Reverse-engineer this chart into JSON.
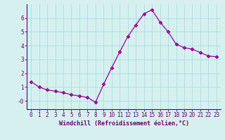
{
  "x": [
    0,
    1,
    2,
    3,
    4,
    5,
    6,
    7,
    8,
    9,
    10,
    11,
    12,
    13,
    14,
    15,
    16,
    17,
    18,
    19,
    20,
    21,
    22,
    23
  ],
  "y": [
    1.4,
    1.0,
    0.8,
    0.7,
    0.6,
    0.45,
    0.35,
    0.25,
    -0.1,
    1.2,
    2.4,
    3.55,
    4.65,
    5.5,
    6.3,
    6.6,
    5.7,
    5.0,
    4.1,
    3.85,
    3.75,
    3.5,
    3.25,
    3.2
  ],
  "line_color": "#990099",
  "marker": "D",
  "marker_size": 2.5,
  "bg_color": "#d6f0f0",
  "grid_color": "#aadddd",
  "axis_color": "#660066",
  "xlabel": "Windchill (Refroidissement éolien,°C)",
  "xlabel_fontsize": 6.0,
  "tick_fontsize": 5.5,
  "ylim": [
    -0.6,
    7.0
  ],
  "xlim": [
    -0.5,
    23.5
  ],
  "yticks": [
    0,
    1,
    2,
    3,
    4,
    5,
    6
  ],
  "ytick_labels": [
    "-0",
    "1",
    "2",
    "3",
    "4",
    "5",
    "6"
  ],
  "xticks": [
    0,
    1,
    2,
    3,
    4,
    5,
    6,
    7,
    8,
    9,
    10,
    11,
    12,
    13,
    14,
    15,
    16,
    17,
    18,
    19,
    20,
    21,
    22,
    23
  ]
}
